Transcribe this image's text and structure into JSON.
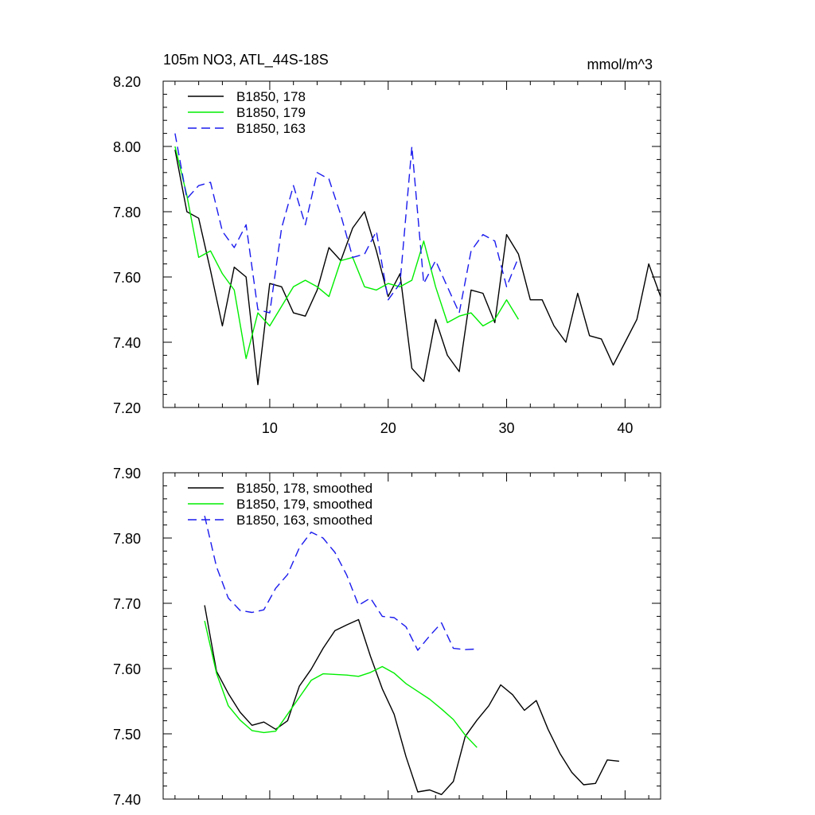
{
  "chart_data": [
    {
      "type": "line",
      "title_left": "105m NO3, ATL_44S-18S",
      "title_right": "mmol/m^3",
      "xlim": [
        1,
        43
      ],
      "ylim": [
        7.2,
        8.2
      ],
      "xticks": [
        10,
        20,
        30,
        40
      ],
      "xtick_labels": [
        "10",
        "20",
        "30",
        "40"
      ],
      "yticks": [
        7.2,
        7.4,
        7.6,
        7.8,
        8.0,
        8.2
      ],
      "ytick_labels": [
        "7.20",
        "7.40",
        "7.60",
        "7.80",
        "8.00",
        "8.20"
      ],
      "legend_position": "top-left",
      "series": [
        {
          "name": "B1850, 178",
          "color": "#000000",
          "dash": "solid",
          "x": [
            2,
            3,
            4,
            5,
            6,
            7,
            8,
            9,
            10,
            11,
            12,
            13,
            14,
            15,
            16,
            17,
            18,
            19,
            20,
            21,
            22,
            23,
            24,
            25,
            26,
            27,
            28,
            29,
            30,
            31,
            32,
            33,
            34,
            35,
            36,
            37,
            38,
            39,
            40,
            41,
            42,
            43
          ],
          "values": [
            7.99,
            7.8,
            7.78,
            7.62,
            7.45,
            7.63,
            7.6,
            7.27,
            7.58,
            7.57,
            7.49,
            7.48,
            7.56,
            7.69,
            7.65,
            7.75,
            7.8,
            7.68,
            7.54,
            7.61,
            7.32,
            7.28,
            7.47,
            7.36,
            7.31,
            7.56,
            7.55,
            7.46,
            7.73,
            7.67,
            7.53,
            7.53,
            7.45,
            7.4,
            7.55,
            7.42,
            7.41,
            7.33,
            7.4,
            7.47,
            7.64,
            7.54
          ]
        },
        {
          "name": "B1850, 179",
          "color": "#00ee00",
          "dash": "solid",
          "x": [
            2,
            3,
            4,
            5,
            6,
            7,
            8,
            9,
            10,
            11,
            12,
            13,
            14,
            15,
            16,
            17,
            18,
            19,
            20,
            21,
            22,
            23,
            24,
            25,
            26,
            27,
            28,
            29,
            30,
            31
          ],
          "values": [
            8.0,
            7.85,
            7.66,
            7.68,
            7.61,
            7.56,
            7.35,
            7.49,
            7.45,
            7.51,
            7.57,
            7.59,
            7.57,
            7.54,
            7.65,
            7.66,
            7.57,
            7.56,
            7.58,
            7.57,
            7.59,
            7.71,
            7.57,
            7.46,
            7.48,
            7.49,
            7.45,
            7.47,
            7.53,
            7.47
          ]
        },
        {
          "name": "B1850, 163",
          "color": "#1a1aee",
          "dash": "dashed",
          "x": [
            2,
            3,
            4,
            5,
            6,
            7,
            8,
            9,
            10,
            11,
            12,
            13,
            14,
            15,
            16,
            17,
            18,
            19,
            20,
            21,
            22,
            23,
            24,
            25,
            26,
            27,
            28,
            29,
            30,
            31
          ],
          "values": [
            8.04,
            7.84,
            7.88,
            7.89,
            7.74,
            7.69,
            7.76,
            7.5,
            7.49,
            7.75,
            7.88,
            7.76,
            7.92,
            7.9,
            7.79,
            7.66,
            7.67,
            7.74,
            7.53,
            7.58,
            8.0,
            7.58,
            7.65,
            7.57,
            7.49,
            7.68,
            7.73,
            7.71,
            7.57,
            7.66
          ]
        }
      ]
    },
    {
      "type": "line",
      "xlim": [
        1,
        43
      ],
      "ylim": [
        7.4,
        7.9
      ],
      "xticks": [
        10,
        20,
        30,
        40
      ],
      "yticks": [
        7.4,
        7.5,
        7.6,
        7.7,
        7.8,
        7.9
      ],
      "ytick_labels": [
        "7.40",
        "7.50",
        "7.60",
        "7.70",
        "7.80",
        "7.90"
      ],
      "legend_position": "top-left",
      "series": [
        {
          "name": "B1850, 178, smoothed",
          "color": "#000000",
          "dash": "solid",
          "x": [
            4.5,
            5.5,
            6.5,
            7.5,
            8.5,
            9.5,
            10.5,
            11.5,
            12.5,
            13.5,
            14.5,
            15.5,
            16.5,
            17.5,
            18.5,
            19.5,
            20.5,
            21.5,
            22.5,
            23.5,
            24.5,
            25.5,
            26.5,
            27.5,
            28.5,
            29.5,
            30.5,
            31.5,
            32.5,
            33.5,
            34.5,
            35.5,
            36.5,
            37.5,
            38.5,
            39.5
          ],
          "values": [
            7.697,
            7.596,
            7.562,
            7.533,
            7.513,
            7.518,
            7.507,
            7.52,
            7.573,
            7.599,
            7.631,
            7.658,
            7.667,
            7.675,
            7.619,
            7.569,
            7.53,
            7.465,
            7.411,
            7.414,
            7.407,
            7.427,
            7.496,
            7.521,
            7.543,
            7.575,
            7.56,
            7.536,
            7.551,
            7.507,
            7.47,
            7.441,
            7.422,
            7.424,
            7.46,
            7.458
          ]
        },
        {
          "name": "B1850, 179, smoothed",
          "color": "#00ee00",
          "dash": "solid",
          "x": [
            4.5,
            5.5,
            6.5,
            7.5,
            8.5,
            9.5,
            10.5,
            13.5,
            14.5,
            16.5,
            17.5,
            18.5,
            19.5,
            20.5,
            21.5,
            22.5,
            23.5,
            24.5,
            25.5,
            26.5,
            27.5
          ],
          "values": [
            7.673,
            7.593,
            7.543,
            7.521,
            7.505,
            7.502,
            7.504,
            7.582,
            7.592,
            7.59,
            7.588,
            7.594,
            7.603,
            7.593,
            7.577,
            7.565,
            7.553,
            7.538,
            7.522,
            7.498,
            7.479
          ]
        },
        {
          "name": "B1850, 163, smoothed",
          "color": "#1a1aee",
          "dash": "dashed",
          "x": [
            4.5,
            5.5,
            6.5,
            7.5,
            8.5,
            9.5,
            10.5,
            11.5,
            12.5,
            13.5,
            14.5,
            15.5,
            16.5,
            17.5,
            18.5,
            19.5,
            20.5,
            21.5,
            22.5,
            23.5,
            24.5,
            25.5,
            26.5,
            27.5
          ],
          "values": [
            7.834,
            7.756,
            7.708,
            7.689,
            7.686,
            7.69,
            7.723,
            7.744,
            7.785,
            7.809,
            7.8,
            7.778,
            7.743,
            7.697,
            7.708,
            7.68,
            7.678,
            7.664,
            7.628,
            7.65,
            7.67,
            7.631,
            7.629,
            7.63
          ]
        }
      ]
    }
  ]
}
